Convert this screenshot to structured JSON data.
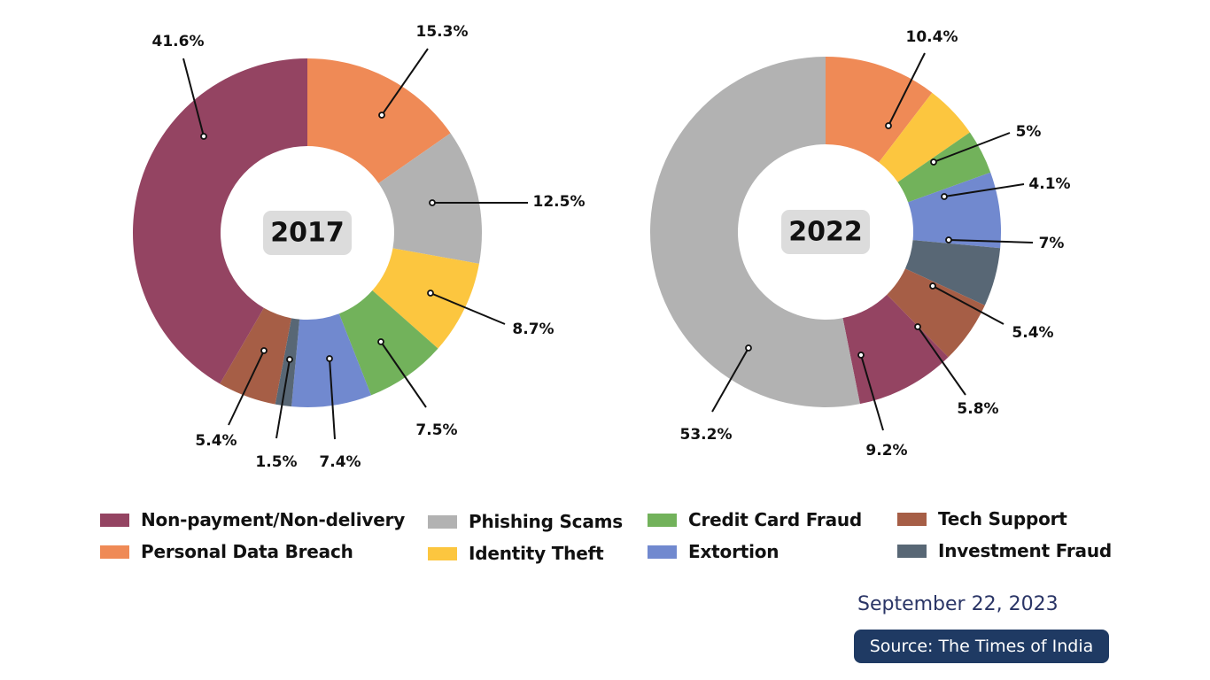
{
  "colors": {
    "Non-payment/Non-delivery": "#944462",
    "Personal Data Breach": "#ef8a56",
    "Phishing Scams": "#b2b2b2",
    "Identity Theft": "#fcc63f",
    "Credit Card Fraud": "#72b25b",
    "Extortion": "#7189cf",
    "Tech Support": "#a65e46",
    "Investment Fraud": "#586775"
  },
  "chart_data": [
    {
      "type": "pie",
      "center_label": "2017",
      "slices": [
        {
          "category": "Personal Data Breach",
          "value": 15.3,
          "label": "15.3%"
        },
        {
          "category": "Phishing Scams",
          "value": 12.5,
          "label": "12.5%"
        },
        {
          "category": "Identity Theft",
          "value": 8.7,
          "label": "8.7%"
        },
        {
          "category": "Credit Card Fraud",
          "value": 7.5,
          "label": "7.5%"
        },
        {
          "category": "Extortion",
          "value": 7.4,
          "label": "7.4%"
        },
        {
          "category": "Investment Fraud",
          "value": 1.5,
          "label": "1.5%"
        },
        {
          "category": "Tech Support",
          "value": 5.4,
          "label": "5.4%"
        },
        {
          "category": "Non-payment/Non-delivery",
          "value": 41.6,
          "label": "41.6%"
        }
      ]
    },
    {
      "type": "pie",
      "center_label": "2022",
      "slices": [
        {
          "category": "Personal Data Breach",
          "value": 10.4,
          "label": "10.4%"
        },
        {
          "category": "Identity Theft",
          "value": 5,
          "label": "5%"
        },
        {
          "category": "Credit Card Fraud",
          "value": 4.1,
          "label": "4.1%"
        },
        {
          "category": "Extortion",
          "value": 7,
          "label": "7%"
        },
        {
          "category": "Investment Fraud",
          "value": 5.4,
          "label": "5.4%"
        },
        {
          "category": "Tech Support",
          "value": 5.8,
          "label": "5.8%"
        },
        {
          "category": "Non-payment/Non-delivery",
          "value": 9.2,
          "label": "9.2%"
        },
        {
          "category": "Phishing Scams",
          "value": 53.2,
          "label": "53.2%"
        }
      ]
    }
  ],
  "legend": [
    {
      "label": "Non-payment/Non-delivery"
    },
    {
      "label": "Personal Data Breach"
    },
    {
      "label": "Phishing Scams"
    },
    {
      "label": "Identity Theft"
    },
    {
      "label": "Credit Card Fraud"
    },
    {
      "label": "Extortion"
    },
    {
      "label": "Tech Support"
    },
    {
      "label": "Investment Fraud"
    }
  ],
  "footer": {
    "date": "September 22, 2023",
    "source": "Source: The Times of India"
  }
}
